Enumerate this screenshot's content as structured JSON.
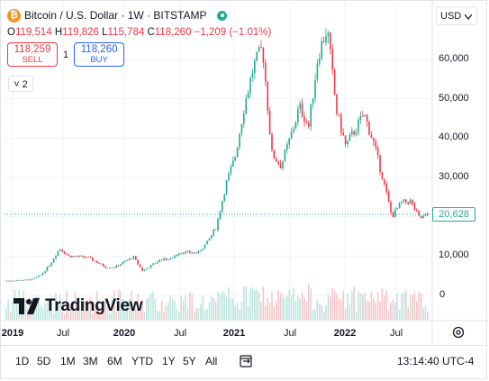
{
  "legend": {
    "symbol_title": "Bitcoin / U.S. Dollar · 1W · BITSTAMP",
    "logo_glyph": "₿",
    "open_label": "O",
    "open": "119,514",
    "high_label": "H",
    "high": "119,826",
    "low_label": "L",
    "low": "115,784",
    "close_label": "C",
    "close": "118,260",
    "change": "−1,209 (−1.01%)",
    "down_color": "#f23645",
    "up_color": "#22ab94"
  },
  "trade": {
    "sell_price": "118,259",
    "sell_label": "SELL",
    "quantity": "1",
    "buy_price": "118,260",
    "buy_label": "BUY"
  },
  "indicators_toggle": "˅ 2",
  "currency": "USD",
  "currency_icon": "chevron-down-icon",
  "last_price": "20,628",
  "watermark": "TradingView",
  "chart_data": {
    "type": "candlestick",
    "ylim": [
      -3000,
      72000
    ],
    "y_ticks": [
      "60,000",
      "50,000",
      "40,000",
      "30,000",
      "20,000",
      "10,000",
      "0"
    ],
    "x_ticks": [
      "2019",
      "Jul",
      "2020",
      "Jul",
      "2021",
      "Jul",
      "2022",
      "Jul"
    ],
    "x_ticks_bold": [
      true,
      false,
      true,
      false,
      true,
      false,
      true,
      false
    ],
    "close_points": [
      [
        "2018-12",
        3700
      ],
      [
        "2019-03",
        4000
      ],
      [
        "2019-04",
        5200
      ],
      [
        "2019-05",
        8000
      ],
      [
        "2019-06",
        12000
      ],
      [
        "2019-07",
        10000
      ],
      [
        "2019-09",
        9700
      ],
      [
        "2019-10",
        8500
      ],
      [
        "2019-11",
        7200
      ],
      [
        "2019-12",
        7200
      ],
      [
        "2020-02",
        9800
      ],
      [
        "2020-03",
        6200
      ],
      [
        "2020-05",
        9200
      ],
      [
        "2020-06",
        9200
      ],
      [
        "2020-07",
        11000
      ],
      [
        "2020-09",
        10800
      ],
      [
        "2020-10",
        13500
      ],
      [
        "2020-11",
        17500
      ],
      [
        "2020-12",
        28000
      ],
      [
        "2021-01",
        35000
      ],
      [
        "2021-02",
        48000
      ],
      [
        "2021-03",
        58000
      ],
      [
        "2021-04",
        63000
      ],
      [
        "2021-05",
        36000
      ],
      [
        "2021-06",
        33000
      ],
      [
        "2021-07",
        40000
      ],
      [
        "2021-08",
        48000
      ],
      [
        "2021-09",
        43000
      ],
      [
        "2021-10",
        61000
      ],
      [
        "2021-11",
        68000
      ],
      [
        "2021-12",
        47000
      ],
      [
        "2022-01",
        38000
      ],
      [
        "2022-02",
        42000
      ],
      [
        "2022-03",
        46000
      ],
      [
        "2022-04",
        39000
      ],
      [
        "2022-05",
        30000
      ],
      [
        "2022-06",
        20000
      ],
      [
        "2022-07",
        23500
      ],
      [
        "2022-08",
        24000
      ],
      [
        "2022-09",
        19500
      ],
      [
        "2022-10",
        20500
      ]
    ]
  },
  "toolbar": {
    "ranges": [
      "1D",
      "5D",
      "1M",
      "3M",
      "6M",
      "YTD",
      "1Y",
      "5Y",
      "All"
    ],
    "compare_icon": "compare-icon",
    "clock": "13:14:40 UTC-4"
  },
  "settings_icon": "gear-icon"
}
